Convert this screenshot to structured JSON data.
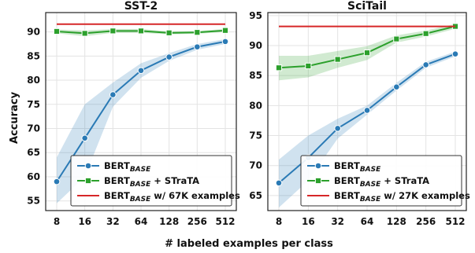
{
  "figure": {
    "ylabel": "Accuracy",
    "xlabel": "# labeled examples per class"
  },
  "chart_data": [
    {
      "type": "line",
      "title": "SST-2",
      "x_scale": "log2",
      "categories": [
        "8",
        "16",
        "32",
        "64",
        "128",
        "256",
        "512"
      ],
      "x": [
        8,
        16,
        32,
        64,
        128,
        256,
        512
      ],
      "ylim": [
        53,
        94
      ],
      "yticks": [
        55,
        60,
        65,
        70,
        75,
        80,
        85,
        90
      ],
      "grid": true,
      "legend_position": "lower-right",
      "series": [
        {
          "name": "BERT_BASE",
          "legend": [
            "BERT",
            "BASE",
            ""
          ],
          "color": "#2a7ab5",
          "marker": "circle",
          "values": [
            59.0,
            68.0,
            77.0,
            82.0,
            84.8,
            86.9,
            88.0
          ],
          "band_low": [
            54.5,
            60.0,
            74.5,
            80.5,
            84.0,
            86.3,
            87.5
          ],
          "band_high": [
            64.0,
            75.0,
            79.5,
            83.5,
            85.6,
            87.5,
            88.5
          ]
        },
        {
          "name": "BERT_BASE + STraTA",
          "legend": [
            "BERT",
            "BASE",
            " + STraTA"
          ],
          "color": "#2ca02c",
          "marker": "square",
          "values": [
            90.1,
            89.7,
            90.2,
            90.2,
            89.8,
            89.9,
            90.3
          ],
          "band_low": [
            89.7,
            89.1,
            89.8,
            89.8,
            89.5,
            89.6,
            90.0
          ],
          "band_high": [
            90.5,
            90.3,
            90.6,
            90.6,
            90.1,
            90.2,
            90.6
          ]
        },
        {
          "name": "BERT_BASE w/ 67K examples",
          "legend": [
            "BERT",
            "BASE",
            " w/ 67K examples"
          ],
          "color": "#d62728",
          "marker": "none",
          "values": [
            91.6,
            91.6,
            91.6,
            91.6,
            91.6,
            91.6,
            91.6
          ]
        }
      ]
    },
    {
      "type": "line",
      "title": "SciTail",
      "x_scale": "log2",
      "categories": [
        "8",
        "16",
        "32",
        "64",
        "128",
        "256",
        "512"
      ],
      "x": [
        8,
        16,
        32,
        64,
        128,
        256,
        512
      ],
      "ylim": [
        62.5,
        95.5
      ],
      "yticks": [
        65,
        70,
        75,
        80,
        85,
        90,
        95
      ],
      "grid": true,
      "legend_position": "lower-right",
      "series": [
        {
          "name": "BERT_BASE",
          "legend": [
            "BERT",
            "BASE",
            ""
          ],
          "color": "#2a7ab5",
          "marker": "circle",
          "values": [
            67.1,
            71.3,
            76.2,
            79.2,
            83.1,
            86.8,
            88.6
          ],
          "band_low": [
            63.0,
            67.5,
            74.5,
            78.5,
            82.5,
            86.3,
            88.2
          ],
          "band_high": [
            71.0,
            75.0,
            77.8,
            80.0,
            83.8,
            87.3,
            89.0
          ]
        },
        {
          "name": "BERT_BASE + STraTA",
          "legend": [
            "BERT",
            "BASE",
            " + STraTA"
          ],
          "color": "#2ca02c",
          "marker": "square",
          "values": [
            86.3,
            86.6,
            87.7,
            88.8,
            91.1,
            92.0,
            93.2
          ],
          "band_low": [
            84.2,
            84.7,
            86.3,
            87.6,
            90.5,
            91.5,
            92.8
          ],
          "band_high": [
            88.3,
            88.3,
            89.1,
            89.9,
            91.7,
            92.5,
            93.6
          ]
        },
        {
          "name": "BERT_BASE w/ 27K examples",
          "legend": [
            "BERT",
            "BASE",
            " w/ 27K examples"
          ],
          "color": "#d62728",
          "marker": "none",
          "values": [
            93.2,
            93.2,
            93.2,
            93.2,
            93.2,
            93.2,
            93.2
          ]
        }
      ]
    }
  ]
}
